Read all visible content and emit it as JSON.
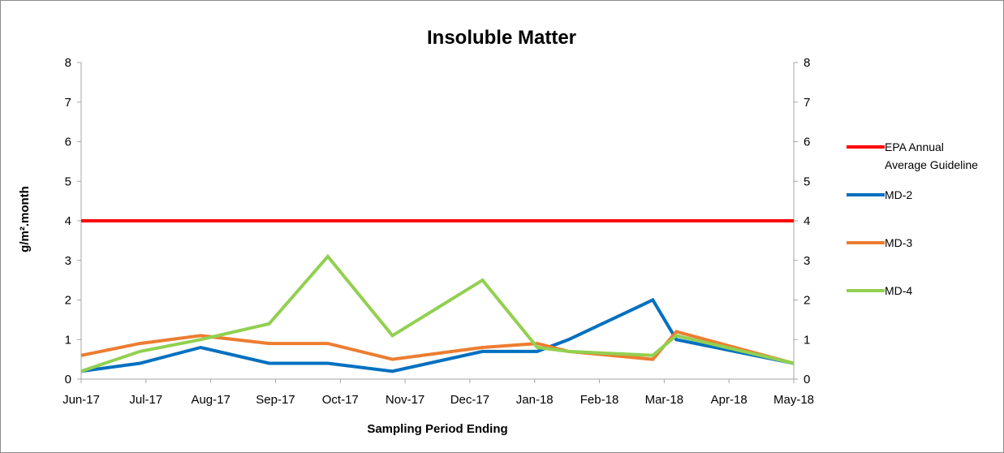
{
  "chart_data": {
    "type": "line",
    "title": "Insoluble Matter",
    "xlabel": "Sampling Period Ending",
    "ylabel": "g/m².month",
    "ylim": [
      0,
      8
    ],
    "yticks": [
      "0",
      "1",
      "2",
      "3",
      "4",
      "5",
      "6",
      "7",
      "8"
    ],
    "y2ticks": [
      "0",
      "1",
      "2",
      "3",
      "4",
      "5",
      "6",
      "7",
      "8"
    ],
    "categories": [
      "Jun-17",
      "Jul-17",
      "Aug-17",
      "Sep-17",
      "Oct-17",
      "Nov-17",
      "Dec-17",
      "Jan-18",
      "Feb-18",
      "Mar-18",
      "Apr-18",
      "May-18"
    ],
    "grid": false,
    "legend_position": "right",
    "series": [
      {
        "name": "EPA Annual Average Guideline",
        "color": "#ff0000",
        "points": [
          [
            "2017-06-01",
            4.0
          ],
          [
            "2018-05-31",
            4.0
          ]
        ]
      },
      {
        "name": "MD-2",
        "color": "#0070c0",
        "points": [
          [
            "2017-06-01",
            0.2
          ],
          [
            "2017-07-01",
            0.4
          ],
          [
            "2017-08-01",
            0.8
          ],
          [
            "2017-09-05",
            0.4
          ],
          [
            "2017-10-05",
            0.4
          ],
          [
            "2017-11-07",
            0.2
          ],
          [
            "2017-12-23",
            0.7
          ],
          [
            "2018-01-20",
            0.7
          ],
          [
            "2018-02-05",
            1.0
          ],
          [
            "2018-03-20",
            2.0
          ],
          [
            "2018-04-01",
            1.0
          ],
          [
            "2018-05-31",
            0.4
          ]
        ]
      },
      {
        "name": "MD-3",
        "color": "#ed7d31",
        "points": [
          [
            "2017-06-01",
            0.6
          ],
          [
            "2017-07-01",
            0.9
          ],
          [
            "2017-08-01",
            1.1
          ],
          [
            "2017-09-05",
            0.9
          ],
          [
            "2017-10-05",
            0.9
          ],
          [
            "2017-11-07",
            0.5
          ],
          [
            "2017-12-23",
            0.8
          ],
          [
            "2018-01-20",
            0.9
          ],
          [
            "2018-02-05",
            0.7
          ],
          [
            "2018-03-20",
            0.5
          ],
          [
            "2018-04-01",
            1.2
          ],
          [
            "2018-05-31",
            0.4
          ]
        ]
      },
      {
        "name": "MD-4",
        "color": "#92d050",
        "points": [
          [
            "2017-06-01",
            0.2
          ],
          [
            "2017-07-01",
            0.7
          ],
          [
            "2017-08-01",
            1.0
          ],
          [
            "2017-09-05",
            1.4
          ],
          [
            "2017-10-05",
            3.1
          ],
          [
            "2017-11-07",
            1.1
          ],
          [
            "2017-12-23",
            2.5
          ],
          [
            "2018-01-20",
            0.8
          ],
          [
            "2018-02-05",
            0.7
          ],
          [
            "2018-03-20",
            0.6
          ],
          [
            "2018-04-01",
            1.1
          ],
          [
            "2018-05-31",
            0.4
          ]
        ]
      }
    ],
    "legend_lines": {
      "EPA Annual Average Guideline": [
        "EPA Annual",
        "Average Guideline"
      ]
    }
  }
}
